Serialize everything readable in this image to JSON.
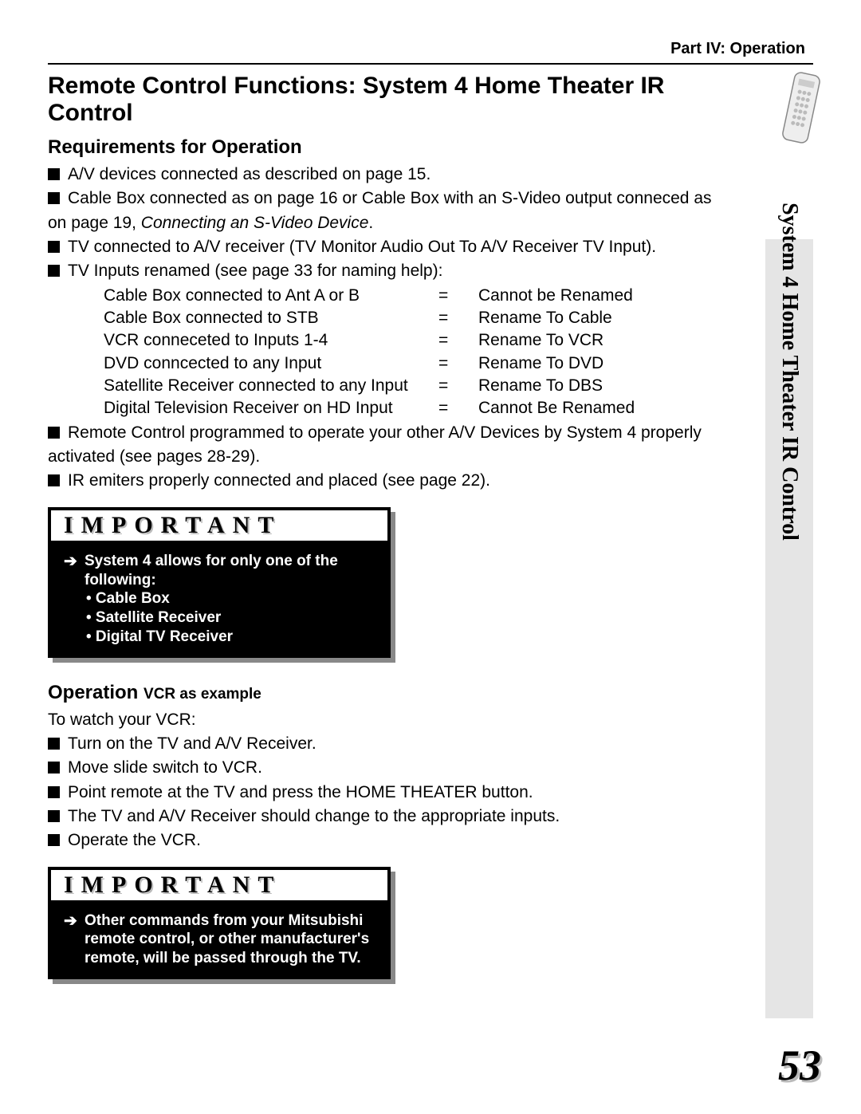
{
  "header": {
    "part": "Part IV: Operation"
  },
  "title": "Remote Control Functions: System 4 Home Theater IR Control",
  "sidebar_label": "System 4 Home Theater IR Control",
  "page_number": "53",
  "requirements": {
    "heading": "Requirements for Operation",
    "items": [
      "A/V devices connected as described on page 15.",
      "Cable Box connected as on page 16 or Cable Box with an S-Video output conneced as",
      "TV connected to A/V receiver (TV Monitor Audio Out To A/V Receiver TV Input).",
      "TV Inputs renamed (see page 33 for naming help):",
      "Remote Control programmed to operate your other A/V Devices by System 4 properly",
      "IR emiters properly connected and placed (see page 22)."
    ],
    "item2_cont_plain": "on page 19, ",
    "item2_cont_italic": "Connecting an S-Video Device",
    "item2_cont_end": ".",
    "item5_cont": "activated (see pages 28-29).",
    "rename_rows": [
      {
        "a": "Cable Box connected to Ant A or B",
        "eq": "=",
        "b": "Cannot be Renamed"
      },
      {
        "a": "Cable Box connected to STB",
        "eq": "=",
        "b": "Rename To Cable"
      },
      {
        "a": "VCR conneceted to Inputs 1-4",
        "eq": "=",
        "b": "Rename To VCR"
      },
      {
        "a": "DVD conncected to any Input",
        "eq": "=",
        "b": "Rename To DVD"
      },
      {
        "a": "Satellite Receiver connected to any Input",
        "eq": "=",
        "b": "Rename To DBS"
      },
      {
        "a": "Digital Television Receiver on HD Input",
        "eq": "=",
        "b": "Cannot Be Renamed"
      }
    ]
  },
  "important1": {
    "header": "IMPORTANT",
    "lead": "System 4 allows for only one of the following:",
    "bullets": [
      "Cable Box",
      "Satellite Receiver",
      "Digital TV Receiver"
    ]
  },
  "operation": {
    "heading_main": "Operation ",
    "heading_sub": "VCR as example",
    "intro": "To watch your VCR:",
    "steps": [
      "Turn on the TV and A/V Receiver.",
      "Move slide switch to VCR.",
      "Point remote at the TV and press the HOME THEATER button.",
      "The TV and A/V Receiver should change to the appropriate inputs.",
      "Operate the VCR."
    ]
  },
  "important2": {
    "header": "IMPORTANT",
    "text": "Other commands from your Mitsubishi remote control, or other manufacturer's remote, will be passed through the TV."
  },
  "colors": {
    "sidebar_bg": "#e5e5e5",
    "shadow": "#888888"
  }
}
